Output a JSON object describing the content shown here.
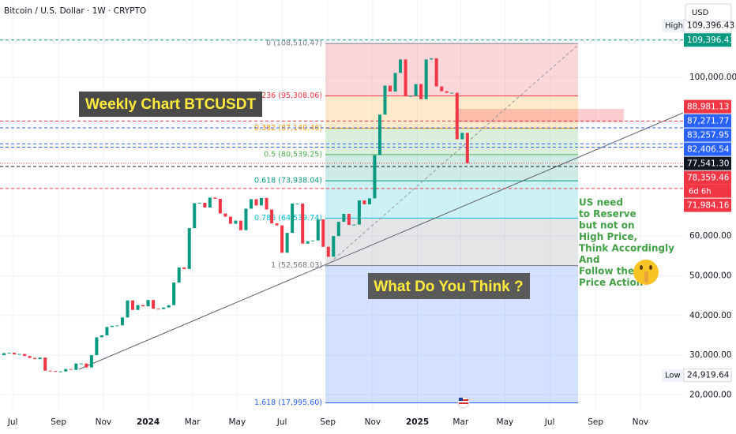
{
  "chart_data": {
    "type": "candlestick",
    "title": "Bitcoin / U.S. Dollar · 1W · CRYPTO",
    "currency": "USD",
    "x": [
      0,
      1,
      2,
      3,
      4,
      5,
      6,
      7,
      8,
      9,
      10,
      11,
      12,
      13,
      14,
      15,
      16,
      17,
      18,
      19,
      20,
      21,
      22,
      23,
      24,
      25,
      26,
      27,
      28,
      29,
      30,
      31,
      32,
      33,
      34,
      35,
      36,
      37,
      38,
      39,
      40,
      41,
      42,
      43,
      44,
      45,
      46,
      47,
      48,
      49,
      50,
      51,
      52,
      53,
      54,
      55,
      56,
      57,
      58,
      59,
      60,
      61,
      62,
      63,
      64,
      65,
      66,
      67,
      68,
      69,
      70,
      71,
      72,
      73,
      74,
      75,
      76,
      77,
      78,
      79,
      80,
      81,
      82,
      83,
      84,
      85,
      86,
      87,
      88,
      89,
      90
    ],
    "open": [
      30000,
      30500,
      30600,
      30200,
      30300,
      29800,
      29300,
      29000,
      29400,
      26100,
      26000,
      25800,
      25900,
      26500,
      26300,
      27900,
      27900,
      26900,
      30000,
      34500,
      35000,
      37100,
      37400,
      37500,
      39500,
      43800,
      41400,
      42600,
      42300,
      43900,
      41700,
      41600,
      42000,
      42600,
      48300,
      52100,
      51700,
      62000,
      68300,
      68400,
      67200,
      69700,
      69400,
      65700,
      64900,
      63100,
      63900,
      61500,
      66900,
      69300,
      67700,
      69600,
      66700,
      63200,
      62700,
      55800,
      60800,
      68200,
      68200,
      58100,
      58700,
      58900,
      64200,
      57300,
      54800,
      60000,
      63600,
      65600,
      62800,
      62900,
      69000,
      68000,
      69500,
      80400,
      90600,
      97900,
      96400,
      101100,
      104500,
      95200,
      95300,
      98300,
      94500,
      104500,
      104800,
      97700,
      96500,
      96100,
      96100,
      84400,
      86000
    ],
    "high": {
      "name": "High",
      "value": 109396.43,
      "label": "109,396.43"
    },
    "low": {
      "name": "Low",
      "value": 24919.64,
      "label": "24,919.64"
    },
    "close": [
      30500,
      30600,
      30200,
      30300,
      29800,
      29300,
      29000,
      29400,
      26100,
      26000,
      25800,
      25900,
      26500,
      26300,
      27900,
      27900,
      26900,
      30000,
      34500,
      35000,
      37100,
      37400,
      37500,
      39500,
      43800,
      41400,
      42600,
      42300,
      43900,
      41700,
      41600,
      42000,
      42600,
      48300,
      52100,
      51700,
      62000,
      68300,
      68400,
      67200,
      69700,
      69400,
      65700,
      64900,
      63100,
      63900,
      61500,
      66900,
      69300,
      67700,
      69600,
      66700,
      63200,
      62700,
      55800,
      60800,
      68200,
      68200,
      58100,
      58700,
      58900,
      64200,
      57300,
      54800,
      60000,
      63600,
      65600,
      62800,
      62900,
      69000,
      68000,
      69500,
      80400,
      90600,
      97900,
      96400,
      101100,
      104500,
      95200,
      95300,
      98300,
      94500,
      104500,
      104800,
      97700,
      96500,
      96100,
      96100,
      84400,
      86000,
      78359.46
    ],
    "up_color": "#089981",
    "down_color": "#f23645",
    "xlim": [
      -0.77,
      131.9
    ],
    "xticks": [
      {
        "value": 1.7,
        "label": "Jul"
      },
      {
        "value": 10.6,
        "label": "Sep"
      },
      {
        "value": 19.3,
        "label": "Nov"
      },
      {
        "value": 28,
        "label": "2024"
      },
      {
        "value": 36.6,
        "label": "Mar"
      },
      {
        "value": 45.3,
        "label": "May"
      },
      {
        "value": 54,
        "label": "Jul"
      },
      {
        "value": 62.9,
        "label": "Sep"
      },
      {
        "value": 71.6,
        "label": "Nov"
      },
      {
        "value": 80.3,
        "label": "2025"
      },
      {
        "value": 88.7,
        "label": "Mar"
      },
      {
        "value": 97.3,
        "label": "May"
      },
      {
        "value": 106,
        "label": "Jul"
      },
      {
        "value": 114.9,
        "label": "Sep"
      },
      {
        "value": 123.6,
        "label": "Nov"
      }
    ],
    "ylim": [
      16100,
      119480
    ],
    "yticks": [
      {
        "value": 100000,
        "label": "100,000.00"
      },
      {
        "value": 60000,
        "label": "60,000.00"
      },
      {
        "value": 50000,
        "label": "50,000.00"
      },
      {
        "value": 40000,
        "label": "40,000.00"
      },
      {
        "value": 30000,
        "label": "30,000.00"
      },
      {
        "value": 20000,
        "label": "20,000.00"
      }
    ],
    "grid": true,
    "price_lines": [
      {
        "value": 109396.43,
        "label": "109,396.43",
        "color": "#089981"
      },
      {
        "value": 88981.13,
        "label": "88,981.13",
        "color": "#f23645"
      },
      {
        "value": 87271.77,
        "label": "87,271.77",
        "color": "#2962ff"
      },
      {
        "value": 83257.95,
        "label": "83,257.95",
        "color": "#2962ff"
      },
      {
        "value": 82406.54,
        "label": "82,406.54",
        "color": "#2962ff"
      },
      {
        "value": 78359.46,
        "label": "78,359.46",
        "color": "#f23645",
        "countdown": "6d 6h"
      },
      {
        "value": 77541.3,
        "label": "77,541.30",
        "color": "#131722"
      },
      {
        "value": 71984.16,
        "label": "71,984.16",
        "color": "#f23645"
      }
    ],
    "fib_levels": [
      {
        "value": 108510.47,
        "label": "0 (108,510.47)",
        "color": "#787b86"
      },
      {
        "value": 95308.06,
        "label": "0.236 (95,308.06)",
        "color": "#f23645"
      },
      {
        "value": 87140.46,
        "label": "0.382 (87,140.46)",
        "color": "#ff9800"
      },
      {
        "value": 80539.25,
        "label": "0.5 (80,539.25)",
        "color": "#4caf50"
      },
      {
        "value": 73938.04,
        "label": "0.618 (73,938.04)",
        "color": "#089981"
      },
      {
        "value": 64539.74,
        "label": "0.786 (64,539.74)",
        "color": "#00bcd4"
      },
      {
        "value": 52568.03,
        "label": "1 (52,568.03)",
        "color": "#787b86"
      },
      {
        "value": 17995.6,
        "label": "1.618 (17,995.60)",
        "color": "#2962ff"
      }
    ],
    "annotations": {
      "headline": "Weekly Chart BTCUSDT",
      "question": "What Do You Think ?",
      "note": [
        "US need",
        "to Reserve",
        "but not on",
        "High Price,",
        "Think Accordingly",
        "And",
        "Follow the",
        "Price Action"
      ]
    }
  }
}
